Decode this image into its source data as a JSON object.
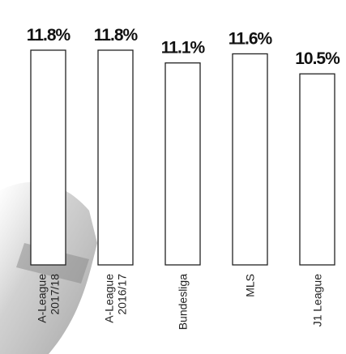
{
  "chart_data": {
    "type": "bar",
    "categories": [
      [
        "A-League",
        "2017/18"
      ],
      [
        "A-League",
        "2016/17"
      ],
      [
        "Bundesliga"
      ],
      [
        "MLS"
      ],
      [
        "J1 League"
      ]
    ],
    "values": [
      11.8,
      11.8,
      11.1,
      11.6,
      10.5
    ],
    "value_labels": [
      "11.8%",
      "11.8%",
      "11.1%",
      "11.6%",
      "10.5%"
    ],
    "color": "#ffffff"
  }
}
